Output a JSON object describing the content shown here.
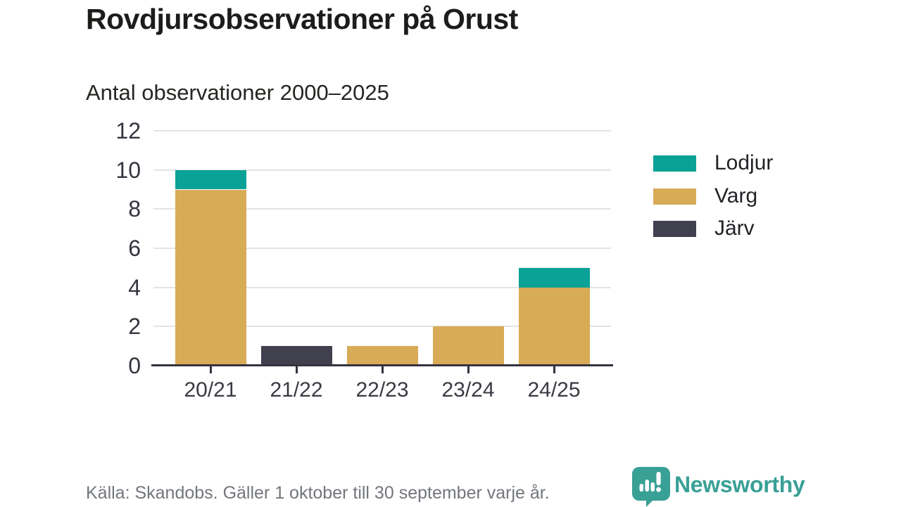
{
  "header": {
    "title": "Rovdjursobservationer på Orust",
    "subtitle": "Antal observationer 2000–2025"
  },
  "footer": {
    "source": "Källa: Skandobs. Gäller 1 oktober till 30 september varje år.",
    "brand_name": "Newsworthy",
    "brand_icon": "speech-bubble-bar-chart-exclamation-icon",
    "brand_color": "#39a096"
  },
  "colors": {
    "lodjur": "#0aa296",
    "varg": "#d8ab57",
    "jarv": "#41404f",
    "grid": "#e4e3e6",
    "axis": "#34333e",
    "muted_text": "#73767c"
  },
  "chart_data": {
    "type": "bar",
    "stacked": true,
    "title": "Rovdjursobservationer på Orust",
    "subtitle": "Antal observationer 2000–2025",
    "categories": [
      "20/21",
      "21/22",
      "22/23",
      "23/24",
      "24/25"
    ],
    "series": [
      {
        "name": "Lodjur",
        "color": "#0aa296",
        "values": [
          1,
          0,
          0,
          0,
          1
        ]
      },
      {
        "name": "Varg",
        "color": "#d8ab57",
        "values": [
          9,
          0,
          1,
          2,
          4
        ]
      },
      {
        "name": "Järv",
        "color": "#41404f",
        "values": [
          0,
          1,
          0,
          0,
          0
        ]
      }
    ],
    "totals": [
      10,
      1,
      1,
      2,
      5
    ],
    "xlabel": "",
    "ylabel": "",
    "ylim": [
      0,
      12
    ],
    "yticks": [
      0,
      2,
      4,
      6,
      8,
      10,
      12
    ],
    "grid": "horizontal",
    "legend_position": "right"
  }
}
